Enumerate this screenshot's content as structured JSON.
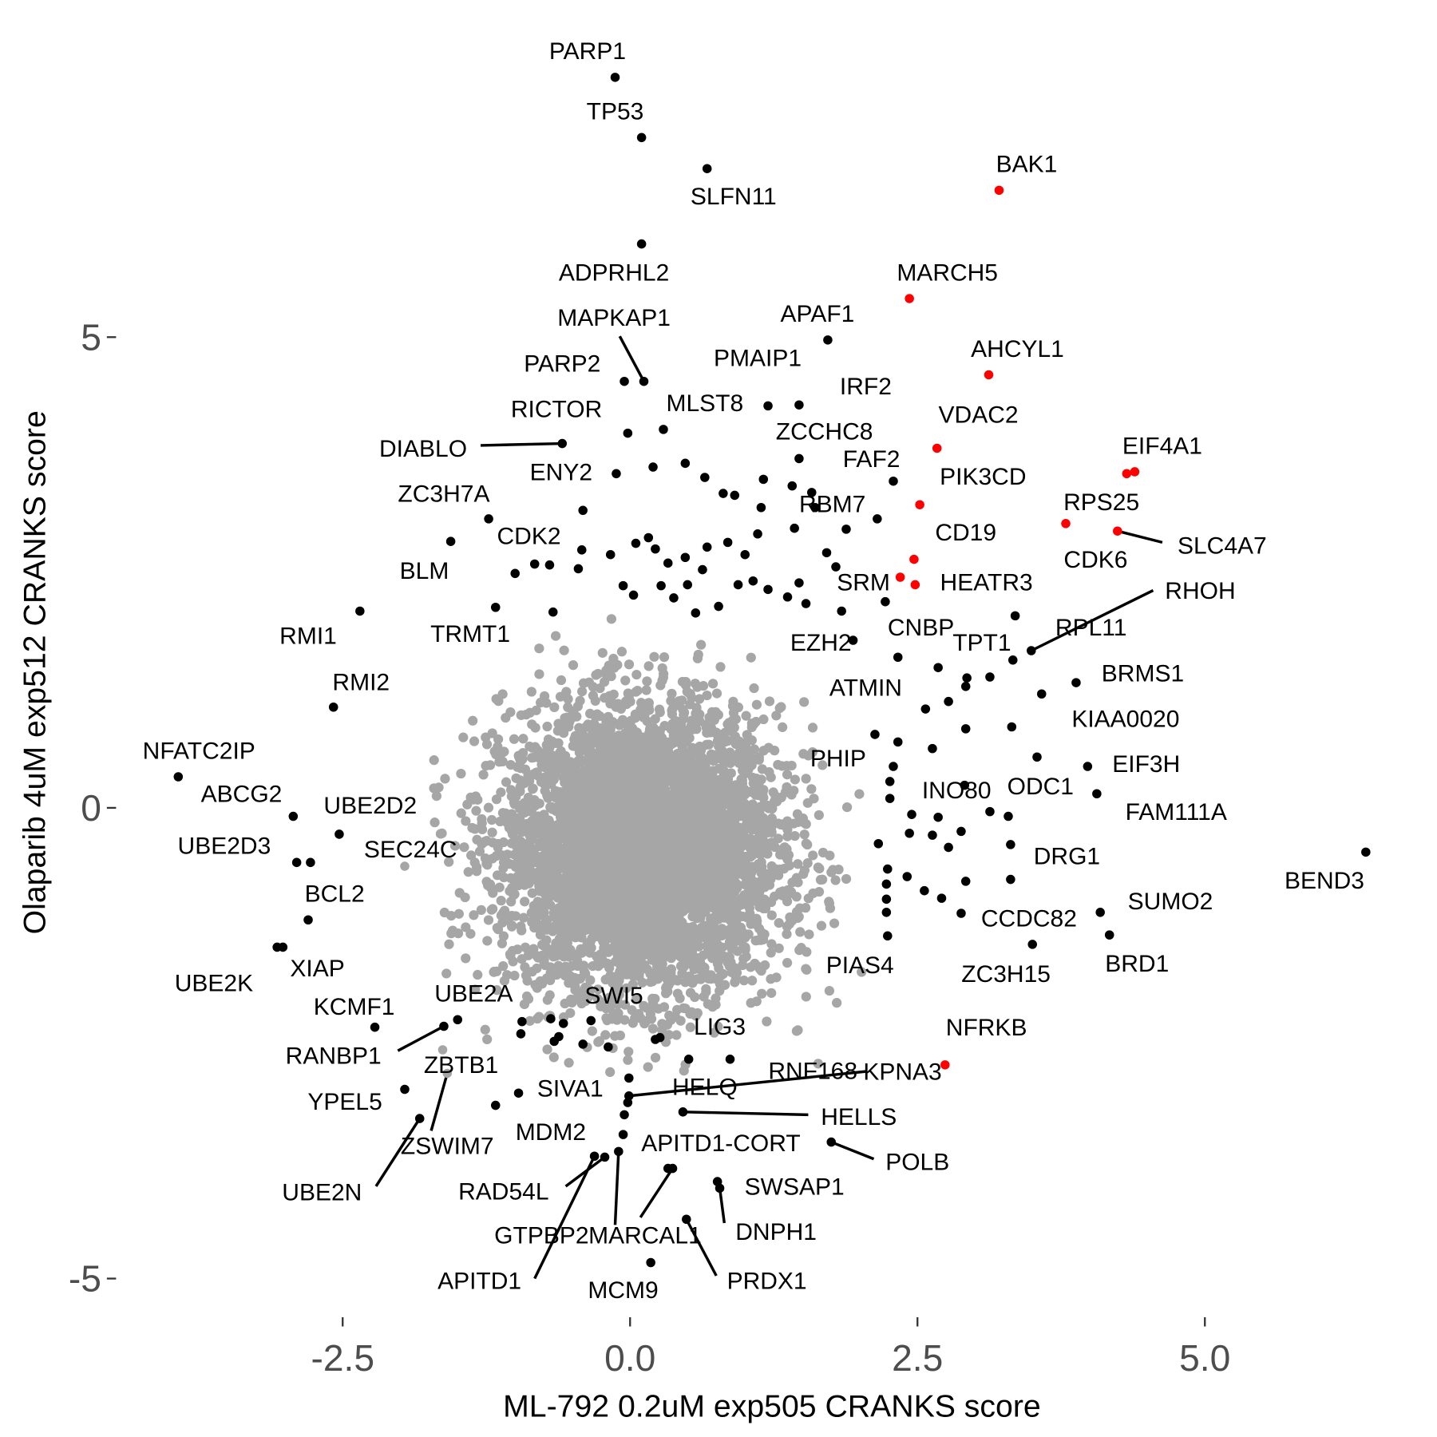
{
  "chart_data": {
    "type": "scatter",
    "title": "",
    "xlabel": "ML-792 0.2uM exp505 CRANKS score",
    "ylabel": "Olaparib 4uM exp512 CRANKS score",
    "xlim": [
      -5.0,
      7.0
    ],
    "ylim": [
      -5.5,
      8.5
    ],
    "grid": false,
    "x_ticks": [
      {
        "value": -2.5,
        "label": "-2.5"
      },
      {
        "value": 0,
        "label": "0.0"
      },
      {
        "value": 2.5,
        "label": "2.5"
      },
      {
        "value": 5,
        "label": "5.0"
      }
    ],
    "y_ticks": [
      {
        "value": 5,
        "label": "5"
      },
      {
        "value": 0,
        "label": "0"
      },
      {
        "value": -5,
        "label": "-5"
      }
    ],
    "colors": {
      "background": "#a6a6a6",
      "significant": "#000000",
      "highlight": "#ff0000"
    },
    "background_points": {
      "n": 5000,
      "mean": [
        0.1,
        -0.45
      ],
      "sd": [
        0.6,
        0.75
      ]
    },
    "labeled_points": [
      {
        "gene": "PARP1",
        "x": -0.13,
        "y": 7.76,
        "lx": -0.37,
        "ly": 8.04,
        "color": "black"
      },
      {
        "gene": "TP53",
        "x": 0.1,
        "y": 7.12,
        "lx": -0.13,
        "ly": 7.4,
        "color": "black"
      },
      {
        "gene": "SLFN11",
        "x": 0.67,
        "y": 6.79,
        "lx": 0.9,
        "ly": 6.5,
        "color": "black"
      },
      {
        "gene": "ADPRHL2",
        "x": 0.1,
        "y": 5.99,
        "lx": -0.14,
        "ly": 5.69,
        "color": "black"
      },
      {
        "gene": "BAK1",
        "x": 3.21,
        "y": 6.56,
        "lx": 3.45,
        "ly": 6.84,
        "color": "red"
      },
      {
        "gene": "MARCH5",
        "x": 2.43,
        "y": 5.41,
        "lx": 2.76,
        "ly": 5.69,
        "color": "red"
      },
      {
        "gene": "APAF1",
        "x": 1.72,
        "y": 4.97,
        "lx": 1.63,
        "ly": 5.25,
        "color": "black"
      },
      {
        "gene": "MAPKAP1",
        "x": 0.12,
        "y": 4.53,
        "lx": -0.14,
        "ly": 5.21,
        "color": "black",
        "seg": [
          -0.09,
          5.01
        ]
      },
      {
        "gene": "PARP2",
        "x": -0.05,
        "y": 4.53,
        "lx": -0.59,
        "ly": 4.72,
        "color": "black"
      },
      {
        "gene": "PMAIP1",
        "x": 1.2,
        "y": 4.27,
        "lx": 1.11,
        "ly": 4.78,
        "color": "black"
      },
      {
        "gene": "AHCYL1",
        "x": 3.12,
        "y": 4.6,
        "lx": 3.37,
        "ly": 4.88,
        "color": "red"
      },
      {
        "gene": "IRF2",
        "x": 1.47,
        "y": 4.28,
        "lx": 2.05,
        "ly": 4.48,
        "color": "black"
      },
      {
        "gene": "MLST8",
        "x": 0.29,
        "y": 4.02,
        "lx": 0.65,
        "ly": 4.3,
        "color": "black"
      },
      {
        "gene": "RICTOR",
        "x": -0.02,
        "y": 3.98,
        "lx": -0.64,
        "ly": 4.24,
        "color": "black"
      },
      {
        "gene": "VDAC2",
        "x": 2.67,
        "y": 3.82,
        "lx": 3.03,
        "ly": 4.18,
        "color": "red"
      },
      {
        "gene": "ZCCHC8",
        "x": 1.47,
        "y": 3.71,
        "lx": 1.69,
        "ly": 4.0,
        "color": "black"
      },
      {
        "gene": "FAF2",
        "x": 2.29,
        "y": 3.47,
        "lx": 2.1,
        "ly": 3.71,
        "color": "black"
      },
      {
        "gene": "DIABLO",
        "x": -0.59,
        "y": 3.87,
        "lx": -1.8,
        "ly": 3.82,
        "color": "black",
        "seg": [
          -1.3,
          3.85
        ]
      },
      {
        "gene": "ENY2",
        "x": -0.12,
        "y": 3.55,
        "lx": -0.6,
        "ly": 3.57,
        "color": "black"
      },
      {
        "gene": "PIK3CD",
        "x": 2.52,
        "y": 3.22,
        "lx": 3.07,
        "ly": 3.52,
        "color": "red"
      },
      {
        "gene": "EIF4A1",
        "x": 4.39,
        "y": 3.57,
        "lx": 4.63,
        "ly": 3.85,
        "color": "red"
      },
      {
        "gene": "RPS25",
        "x": 4.32,
        "y": 3.55,
        "lx": 4.1,
        "ly": 3.25,
        "color": "red"
      },
      {
        "gene": "RBM7",
        "x": 1.88,
        "y": 2.96,
        "lx": 1.76,
        "ly": 3.23,
        "color": "black"
      },
      {
        "gene": "ZC3H7A",
        "x": -1.23,
        "y": 3.07,
        "lx": -1.62,
        "ly": 3.34,
        "color": "black"
      },
      {
        "gene": "CD19",
        "x": 2.47,
        "y": 2.64,
        "lx": 2.92,
        "ly": 2.93,
        "color": "red"
      },
      {
        "gene": "CDK6",
        "x": 3.79,
        "y": 3.02,
        "lx": 4.05,
        "ly": 2.64,
        "color": "red"
      },
      {
        "gene": "SLC4A7",
        "x": 4.24,
        "y": 2.94,
        "lx": 5.15,
        "ly": 2.79,
        "color": "red",
        "seg": [
          4.63,
          2.82
        ]
      },
      {
        "gene": "CDK2",
        "x": -0.83,
        "y": 2.59,
        "lx": -0.88,
        "ly": 2.89,
        "color": "black"
      },
      {
        "gene": "BLM",
        "x": -1.56,
        "y": 2.83,
        "lx": -1.79,
        "ly": 2.52,
        "color": "black"
      },
      {
        "gene": "HEATR3",
        "x": 2.48,
        "y": 2.37,
        "lx": 3.1,
        "ly": 2.4,
        "color": "red"
      },
      {
        "gene": "SRM",
        "x": 2.35,
        "y": 2.45,
        "lx": 2.03,
        "ly": 2.4,
        "color": "red"
      },
      {
        "gene": "RHOH",
        "x": 3.49,
        "y": 1.67,
        "lx": 4.96,
        "ly": 2.31,
        "color": "black",
        "seg": [
          4.55,
          2.31
        ]
      },
      {
        "gene": "RMI1",
        "x": -2.35,
        "y": 2.09,
        "lx": -2.8,
        "ly": 1.83,
        "color": "black"
      },
      {
        "gene": "TRMT1",
        "x": -1.17,
        "y": 2.13,
        "lx": -1.39,
        "ly": 1.85,
        "color": "black"
      },
      {
        "gene": "CNBP",
        "x": 2.22,
        "y": 2.19,
        "lx": 2.53,
        "ly": 1.92,
        "color": "black"
      },
      {
        "gene": "RPL11",
        "x": 3.35,
        "y": 2.04,
        "lx": 4.01,
        "ly": 1.92,
        "color": "black"
      },
      {
        "gene": "EZH2",
        "x": 1.94,
        "y": 1.78,
        "lx": 1.66,
        "ly": 1.76,
        "color": "black"
      },
      {
        "gene": "TPT1",
        "x": 3.33,
        "y": 1.57,
        "lx": 3.06,
        "ly": 1.76,
        "color": "black"
      },
      {
        "gene": "BRMS1",
        "x": 3.88,
        "y": 1.33,
        "lx": 4.46,
        "ly": 1.43,
        "color": "black"
      },
      {
        "gene": "ATMIN",
        "x": 2.33,
        "y": 1.6,
        "lx": 2.05,
        "ly": 1.28,
        "color": "black"
      },
      {
        "gene": "RMI2",
        "x": -2.58,
        "y": 1.07,
        "lx": -2.34,
        "ly": 1.34,
        "color": "black"
      },
      {
        "gene": "KIAA0020",
        "x": 3.58,
        "y": 1.21,
        "lx": 4.31,
        "ly": 0.95,
        "color": "black"
      },
      {
        "gene": "NFATC2IP",
        "x": -3.93,
        "y": 0.33,
        "lx": -3.75,
        "ly": 0.61,
        "color": "black"
      },
      {
        "gene": "PHIP",
        "x": 2.13,
        "y": 0.78,
        "lx": 1.81,
        "ly": 0.53,
        "color": "black"
      },
      {
        "gene": "EIF3H",
        "x": 3.98,
        "y": 0.44,
        "lx": 4.49,
        "ly": 0.47,
        "color": "black"
      },
      {
        "gene": "INO80",
        "x": 2.91,
        "y": 0.24,
        "lx": 2.84,
        "ly": 0.19,
        "color": "black"
      },
      {
        "gene": "ODC1",
        "x": 3.54,
        "y": 0.54,
        "lx": 3.57,
        "ly": 0.23,
        "color": "black"
      },
      {
        "gene": "ABCG2",
        "x": -2.93,
        "y": -0.09,
        "lx": -3.38,
        "ly": 0.15,
        "color": "black"
      },
      {
        "gene": "UBE2D2",
        "x": -2.53,
        "y": -0.28,
        "lx": -2.26,
        "ly": 0.03,
        "color": "black"
      },
      {
        "gene": "FAM111A",
        "x": 4.06,
        "y": 0.15,
        "lx": 4.75,
        "ly": -0.04,
        "color": "black"
      },
      {
        "gene": "UBE2D3",
        "x": -2.9,
        "y": -0.58,
        "lx": -3.53,
        "ly": -0.4,
        "color": "black"
      },
      {
        "gene": "SEC24C",
        "x": -1.96,
        "y": -0.62,
        "lx": -1.91,
        "ly": -0.44,
        "color": "grey"
      },
      {
        "gene": "DRG1",
        "x": 3.31,
        "y": -0.39,
        "lx": 3.8,
        "ly": -0.51,
        "color": "black"
      },
      {
        "gene": "BEND3",
        "x": 6.4,
        "y": -0.47,
        "lx": 6.04,
        "ly": -0.77,
        "color": "black"
      },
      {
        "gene": "BCL2",
        "x": -2.8,
        "y": -1.19,
        "lx": -2.57,
        "ly": -0.91,
        "color": "black"
      },
      {
        "gene": "SUMO2",
        "x": 4.09,
        "y": -1.11,
        "lx": 4.7,
        "ly": -0.99,
        "color": "black"
      },
      {
        "gene": "CCDC82",
        "x": 2.88,
        "y": -1.12,
        "lx": 3.47,
        "ly": -1.17,
        "color": "black"
      },
      {
        "gene": "BRD1",
        "x": 4.17,
        "y": -1.35,
        "lx": 4.41,
        "ly": -1.65,
        "color": "black"
      },
      {
        "gene": "ZC3H15",
        "x": 3.5,
        "y": -1.45,
        "lx": 3.27,
        "ly": -1.76,
        "color": "black"
      },
      {
        "gene": "PIAS4",
        "x": 2.24,
        "y": -1.36,
        "lx": 2.0,
        "ly": -1.67,
        "color": "black"
      },
      {
        "gene": "XIAP",
        "x": -3.02,
        "y": -1.48,
        "lx": -2.72,
        "ly": -1.7,
        "color": "black"
      },
      {
        "gene": "UBE2K",
        "x": -3.07,
        "y": -1.48,
        "lx": -3.62,
        "ly": -1.86,
        "color": "black"
      },
      {
        "gene": "KCMF1",
        "x": -2.22,
        "y": -2.33,
        "lx": -2.4,
        "ly": -2.11,
        "color": "black"
      },
      {
        "gene": "UBE2A",
        "x": -1.5,
        "y": -2.25,
        "lx": -1.36,
        "ly": -1.97,
        "color": "black"
      },
      {
        "gene": "SWI5",
        "x": -0.2,
        "y": -2.26,
        "lx": -0.14,
        "ly": -1.99,
        "color": "grey"
      },
      {
        "gene": "LIG3",
        "x": 0.26,
        "y": -2.44,
        "lx": 0.78,
        "ly": -2.32,
        "color": "black"
      },
      {
        "gene": "NFRKB",
        "x": 2.74,
        "y": -2.73,
        "lx": 3.1,
        "ly": -2.33,
        "color": "red"
      },
      {
        "gene": "KPNA3",
        "x": -0.01,
        "y": -2.87,
        "lx": 2.37,
        "ly": -2.8,
        "color": "black"
      },
      {
        "gene": "RANBP1",
        "x": -1.62,
        "y": -2.32,
        "lx": -2.58,
        "ly": -2.63,
        "color": "black",
        "seg": [
          -2.02,
          -2.58
        ]
      },
      {
        "gene": "ZBTB1",
        "x": -1.63,
        "y": -2.57,
        "lx": -1.47,
        "ly": -2.73,
        "color": "grey"
      },
      {
        "gene": "ZSWIM7",
        "x": -1.59,
        "y": -2.82,
        "lx": -1.59,
        "ly": -3.59,
        "color": "grey",
        "seg": [
          -1.73,
          -3.43
        ]
      },
      {
        "gene": "SIVA1",
        "x": -0.97,
        "y": -3.03,
        "lx": -0.52,
        "ly": -2.98,
        "color": "black"
      },
      {
        "gene": "HELQ",
        "x": -0.02,
        "y": -3.13,
        "lx": 0.65,
        "ly": -2.96,
        "color": "black"
      },
      {
        "gene": "RNF168",
        "x": -0.01,
        "y": -3.06,
        "lx": 1.59,
        "ly": -2.79,
        "color": "black",
        "seg": [
          2.05,
          -2.8
        ]
      },
      {
        "gene": "YPEL5",
        "x": -1.96,
        "y": -2.99,
        "lx": -2.48,
        "ly": -3.12,
        "color": "black"
      },
      {
        "gene": "HELLS",
        "x": 0.46,
        "y": -3.23,
        "lx": 1.99,
        "ly": -3.28,
        "color": "black",
        "seg": [
          1.55,
          -3.26
        ]
      },
      {
        "gene": "MDM2",
        "x": -0.05,
        "y": -3.26,
        "lx": -0.69,
        "ly": -3.44,
        "color": "black"
      },
      {
        "gene": "UBE2N",
        "x": -1.83,
        "y": -3.3,
        "lx": -2.68,
        "ly": -4.08,
        "color": "black",
        "seg": [
          -2.21,
          -4.02
        ]
      },
      {
        "gene": "APITD1-CORT",
        "x": -0.06,
        "y": -3.47,
        "lx": 0.79,
        "ly": -3.56,
        "color": "black"
      },
      {
        "gene": "POLB",
        "x": 1.75,
        "y": -3.55,
        "lx": 2.5,
        "ly": -3.76,
        "color": "black",
        "seg": [
          2.12,
          -3.73
        ]
      },
      {
        "gene": "RAD54L",
        "x": -0.22,
        "y": -3.71,
        "lx": -1.1,
        "ly": -4.07,
        "color": "black",
        "seg": [
          -0.56,
          -4.02
        ]
      },
      {
        "gene": "SWSAP1",
        "x": 0.76,
        "y": -3.97,
        "lx": 1.43,
        "ly": -4.02,
        "color": "black"
      },
      {
        "gene": "GTPBP2",
        "x": -0.1,
        "y": -3.65,
        "lx": -0.77,
        "ly": -4.54,
        "color": "black",
        "seg": [
          -0.13,
          -4.43
        ]
      },
      {
        "gene": "MARCAL1",
        "x": 0.37,
        "y": -3.83,
        "lx": 0.13,
        "ly": -4.54,
        "color": "black",
        "seg": [
          0.09,
          -4.35
        ]
      },
      {
        "gene": "DNPH1",
        "x": 0.78,
        "y": -4.04,
        "lx": 1.27,
        "ly": -4.5,
        "color": "black",
        "seg": [
          0.82,
          -4.41
        ]
      },
      {
        "gene": "APITD1",
        "x": -0.31,
        "y": -3.7,
        "lx": -1.31,
        "ly": -5.02,
        "color": "black",
        "seg": [
          -0.83,
          -5.0
        ]
      },
      {
        "gene": "MCM9",
        "x": 0.18,
        "y": -4.83,
        "lx": -0.06,
        "ly": -5.12,
        "color": "black"
      },
      {
        "gene": "PRDX1",
        "x": 0.49,
        "y": -4.37,
        "lx": 1.19,
        "ly": -5.02,
        "color": "black",
        "seg": [
          0.75,
          -4.97
        ]
      }
    ],
    "unlabeled_black_points": [
      [
        0.2,
        3.62
      ],
      [
        0.48,
        3.66
      ],
      [
        0.65,
        3.51
      ],
      [
        0.81,
        3.34
      ],
      [
        0.91,
        3.32
      ],
      [
        1.16,
        3.49
      ],
      [
        1.41,
        3.42
      ],
      [
        1.58,
        3.35
      ],
      [
        1.61,
        3.19
      ],
      [
        2.15,
        3.07
      ],
      [
        -0.41,
        3.16
      ],
      [
        0.16,
        2.87
      ],
      [
        0.05,
        2.81
      ],
      [
        -0.17,
        2.69
      ],
      [
        -0.42,
        2.74
      ],
      [
        -0.7,
        2.58
      ],
      [
        -1.0,
        2.49
      ],
      [
        -0.45,
        2.54
      ],
      [
        -0.06,
        2.36
      ],
      [
        0.22,
        2.75
      ],
      [
        0.33,
        2.6
      ],
      [
        0.48,
        2.66
      ],
      [
        0.67,
        2.77
      ],
      [
        0.85,
        2.82
      ],
      [
        1.0,
        2.69
      ],
      [
        1.11,
        2.91
      ],
      [
        1.14,
        3.19
      ],
      [
        1.43,
        2.97
      ],
      [
        1.71,
        2.71
      ],
      [
        1.79,
        2.56
      ],
      [
        1.47,
        2.39
      ],
      [
        1.37,
        2.24
      ],
      [
        1.2,
        2.32
      ],
      [
        1.07,
        2.41
      ],
      [
        0.94,
        2.37
      ],
      [
        0.63,
        2.53
      ],
      [
        0.5,
        2.37
      ],
      [
        0.38,
        2.23
      ],
      [
        0.27,
        2.36
      ],
      [
        0.03,
        2.26
      ],
      [
        -0.67,
        2.08
      ],
      [
        0.57,
        2.07
      ],
      [
        0.77,
        2.14
      ],
      [
        1.53,
        2.17
      ],
      [
        1.84,
        2.09
      ],
      [
        2.68,
        1.49
      ],
      [
        2.93,
        1.38
      ],
      [
        2.92,
        1.29
      ],
      [
        3.13,
        1.39
      ],
      [
        2.77,
        1.13
      ],
      [
        3.32,
        0.86
      ],
      [
        2.92,
        0.84
      ],
      [
        2.57,
        1.05
      ],
      [
        2.33,
        0.7
      ],
      [
        2.29,
        0.44
      ],
      [
        2.63,
        0.63
      ],
      [
        2.26,
        0.28
      ],
      [
        2.26,
        0.1
      ],
      [
        2.45,
        -0.07
      ],
      [
        2.68,
        -0.1
      ],
      [
        3.13,
        -0.04
      ],
      [
        3.29,
        -0.09
      ],
      [
        2.43,
        -0.27
      ],
      [
        2.63,
        -0.29
      ],
      [
        2.88,
        -0.25
      ],
      [
        2.16,
        -0.38
      ],
      [
        2.77,
        -0.42
      ],
      [
        2.24,
        -0.65
      ],
      [
        2.41,
        -0.73
      ],
      [
        2.23,
        -0.81
      ],
      [
        2.56,
        -0.88
      ],
      [
        2.71,
        -0.96
      ],
      [
        2.92,
        -0.78
      ],
      [
        2.23,
        -0.97
      ],
      [
        2.23,
        -1.11
      ],
      [
        3.31,
        -0.76
      ],
      [
        -2.78,
        -0.58
      ],
      [
        -0.94,
        -2.27
      ],
      [
        -0.69,
        -2.24
      ],
      [
        -0.58,
        -2.29
      ],
      [
        -0.62,
        -2.43
      ],
      [
        -0.34,
        -2.26
      ],
      [
        -0.95,
        -2.4
      ],
      [
        -0.66,
        -2.48
      ],
      [
        -0.41,
        -2.51
      ],
      [
        -0.19,
        -2.54
      ],
      [
        0.22,
        -2.46
      ],
      [
        0.51,
        -2.67
      ],
      [
        0.87,
        -2.67
      ],
      [
        -1.17,
        -3.16
      ],
      [
        0.33,
        -3.83
      ]
    ]
  }
}
